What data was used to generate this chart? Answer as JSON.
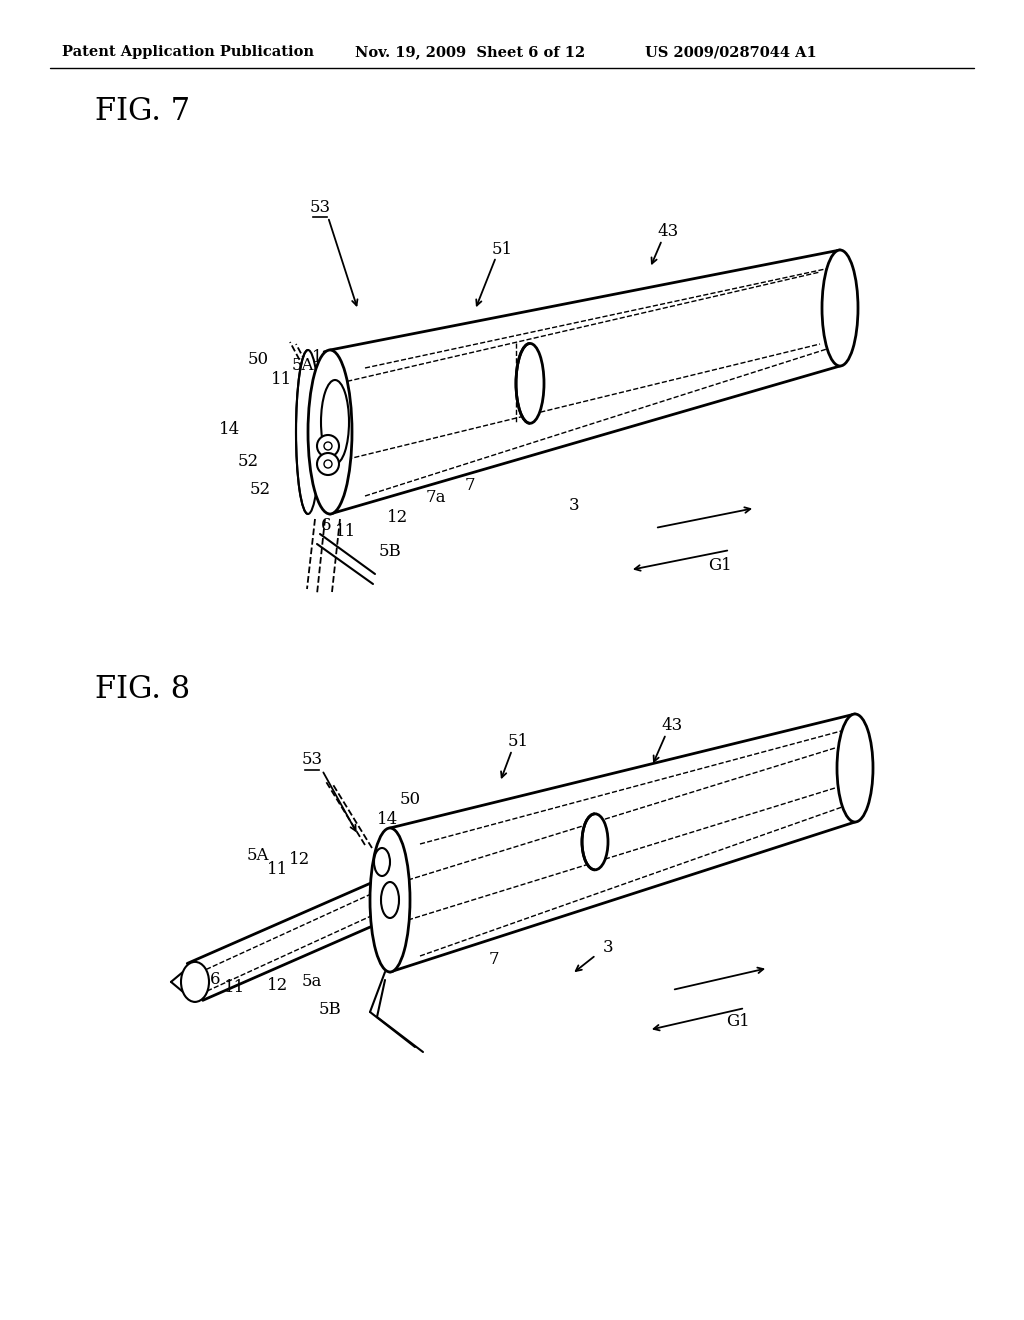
{
  "bg_color": "#ffffff",
  "header_left": "Patent Application Publication",
  "header_mid": "Nov. 19, 2009  Sheet 6 of 12",
  "header_right": "US 2009/0287044 A1",
  "fig7_label": "FIG. 7",
  "fig8_label": "FIG. 8"
}
